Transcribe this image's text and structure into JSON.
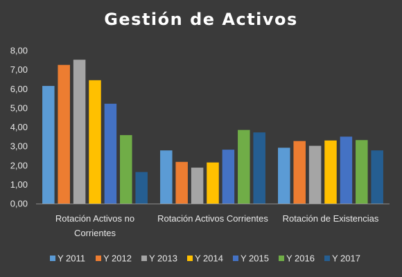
{
  "chart_data": {
    "type": "bar",
    "title": "Gestión de Activos",
    "xlabel": "",
    "ylabel": "",
    "ylim": [
      0,
      8
    ],
    "yticks": [
      "0,00",
      "1,00",
      "2,00",
      "3,00",
      "4,00",
      "5,00",
      "6,00",
      "7,00",
      "8,00"
    ],
    "categories": [
      [
        "Rotación Activos no",
        "Corrientes"
      ],
      [
        "Rotación Activos Corrientes"
      ],
      [
        "Rotación de Existencias"
      ]
    ],
    "grid": false,
    "legend_position": "bottom",
    "series": [
      {
        "name": "Y 2011",
        "color": "#5b9bd5",
        "values": [
          6.15,
          2.78,
          2.92
        ]
      },
      {
        "name": "Y 2012",
        "color": "#ed7d31",
        "values": [
          7.25,
          2.18,
          3.27
        ]
      },
      {
        "name": "Y 2013",
        "color": "#a5a5a5",
        "values": [
          7.52,
          1.88,
          3.02
        ]
      },
      {
        "name": "Y 2014",
        "color": "#ffc000",
        "values": [
          6.45,
          2.15,
          3.3
        ]
      },
      {
        "name": "Y 2015",
        "color": "#4472c4",
        "values": [
          5.22,
          2.82,
          3.5
        ]
      },
      {
        "name": "Y 2016",
        "color": "#70ad47",
        "values": [
          3.58,
          3.85,
          3.32
        ]
      },
      {
        "name": "Y 2017",
        "color": "#255e91",
        "values": [
          1.65,
          3.72,
          2.78
        ]
      }
    ]
  }
}
